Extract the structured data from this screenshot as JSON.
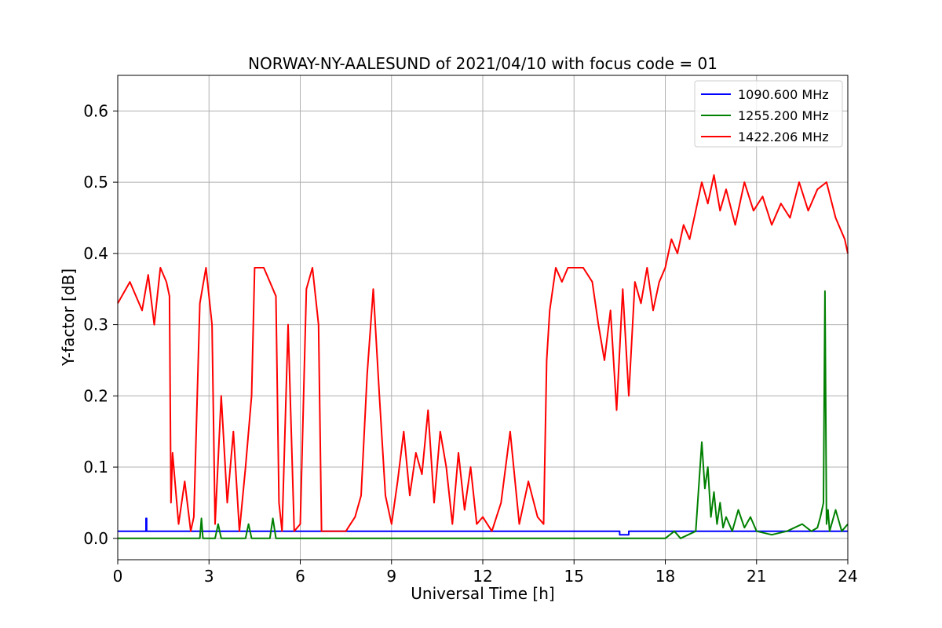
{
  "chart_data": {
    "type": "line",
    "title": "NORWAY-NY-AALESUND of 2021/04/10 with focus code = 01",
    "xlabel": "Universal Time [h]",
    "ylabel": "Y-factor [dB]",
    "xlim": [
      0,
      24
    ],
    "ylim": [
      -0.03,
      0.65
    ],
    "xticks": [
      0,
      3,
      6,
      9,
      12,
      15,
      18,
      21,
      24
    ],
    "yticks": [
      0.0,
      0.1,
      0.2,
      0.3,
      0.4,
      0.5,
      0.6
    ],
    "ytick_labels": [
      "0.0",
      "0.1",
      "0.2",
      "0.3",
      "0.4",
      "0.5",
      "0.6"
    ],
    "grid": true,
    "legend_position": "top-right",
    "series": [
      {
        "name": "1090.600 MHz",
        "color": "#0000ff",
        "x": [
          0,
          0.93,
          0.93,
          0.95,
          0.95,
          16.5,
          16.5,
          16.8,
          16.8,
          24
        ],
        "y": [
          0.01,
          0.01,
          0.028,
          0.028,
          0.01,
          0.01,
          0.005,
          0.005,
          0.01,
          0.01
        ]
      },
      {
        "name": "1255.200 MHz",
        "color": "#008000",
        "x": [
          0,
          2.7,
          2.75,
          2.8,
          3.2,
          3.3,
          3.4,
          4.2,
          4.3,
          4.4,
          5.0,
          5.1,
          5.2,
          18.0,
          18.3,
          18.5,
          19.0,
          19.2,
          19.3,
          19.4,
          19.5,
          19.6,
          19.7,
          19.8,
          19.9,
          20.0,
          20.2,
          20.4,
          20.6,
          20.8,
          21.0,
          21.5,
          22.0,
          22.5,
          22.8,
          23.0,
          23.1,
          23.2,
          23.25,
          23.3,
          23.35,
          23.4,
          23.6,
          23.8,
          24.0
        ],
        "y": [
          0,
          0,
          0.028,
          0,
          0,
          0.02,
          0,
          0,
          0.02,
          0,
          0,
          0.028,
          0,
          0,
          0.01,
          0,
          0.01,
          0.135,
          0.07,
          0.1,
          0.03,
          0.065,
          0.02,
          0.05,
          0.015,
          0.03,
          0.01,
          0.04,
          0.015,
          0.03,
          0.01,
          0.005,
          0.01,
          0.02,
          0.01,
          0.015,
          0.03,
          0.05,
          0.347,
          0.02,
          0.04,
          0.01,
          0.04,
          0.01,
          0.02
        ]
      },
      {
        "name": "1422.206 MHz",
        "color": "#ff0000",
        "x": [
          0,
          0.4,
          0.8,
          1.0,
          1.2,
          1.4,
          1.6,
          1.7,
          1.75,
          1.8,
          2.0,
          2.2,
          2.4,
          2.5,
          2.7,
          2.9,
          3.1,
          3.2,
          3.4,
          3.6,
          3.8,
          4.0,
          4.2,
          4.4,
          4.5,
          4.6,
          4.8,
          5.0,
          5.2,
          5.3,
          5.4,
          5.6,
          5.8,
          6.0,
          6.2,
          6.4,
          6.6,
          6.7,
          6.8,
          7.0,
          7.5,
          7.8,
          8.0,
          8.2,
          8.4,
          8.6,
          8.8,
          9.0,
          9.2,
          9.4,
          9.6,
          9.8,
          10.0,
          10.2,
          10.4,
          10.6,
          10.8,
          11.0,
          11.2,
          11.4,
          11.6,
          11.8,
          12.0,
          12.3,
          12.6,
          12.9,
          13.2,
          13.5,
          13.8,
          14.0,
          14.1,
          14.2,
          14.4,
          14.6,
          14.8,
          15.0,
          15.3,
          15.6,
          15.8,
          16.0,
          16.2,
          16.4,
          16.6,
          16.8,
          17.0,
          17.2,
          17.4,
          17.6,
          17.8,
          18.0,
          18.2,
          18.4,
          18.6,
          18.8,
          19.0,
          19.2,
          19.4,
          19.6,
          19.8,
          20.0,
          20.3,
          20.6,
          20.9,
          21.2,
          21.5,
          21.8,
          22.1,
          22.4,
          22.7,
          23.0,
          23.3,
          23.6,
          23.9,
          24.0
        ],
        "y": [
          0.33,
          0.36,
          0.32,
          0.37,
          0.3,
          0.38,
          0.36,
          0.34,
          0.05,
          0.12,
          0.02,
          0.08,
          0.01,
          0.03,
          0.33,
          0.38,
          0.3,
          0.02,
          0.2,
          0.05,
          0.15,
          0.01,
          0.1,
          0.2,
          0.38,
          0.38,
          0.38,
          0.36,
          0.34,
          0.05,
          0.01,
          0.3,
          0.01,
          0.02,
          0.35,
          0.38,
          0.3,
          0.01,
          0.01,
          0.01,
          0.01,
          0.03,
          0.06,
          0.23,
          0.35,
          0.2,
          0.06,
          0.02,
          0.08,
          0.15,
          0.06,
          0.12,
          0.09,
          0.18,
          0.05,
          0.15,
          0.1,
          0.02,
          0.12,
          0.04,
          0.1,
          0.02,
          0.03,
          0.01,
          0.05,
          0.15,
          0.02,
          0.08,
          0.03,
          0.02,
          0.25,
          0.32,
          0.38,
          0.36,
          0.38,
          0.38,
          0.38,
          0.36,
          0.3,
          0.25,
          0.32,
          0.18,
          0.35,
          0.2,
          0.36,
          0.33,
          0.38,
          0.32,
          0.36,
          0.38,
          0.42,
          0.4,
          0.44,
          0.42,
          0.46,
          0.5,
          0.47,
          0.51,
          0.46,
          0.49,
          0.44,
          0.5,
          0.46,
          0.48,
          0.44,
          0.47,
          0.45,
          0.5,
          0.46,
          0.49,
          0.5,
          0.45,
          0.42,
          0.4
        ]
      }
    ]
  }
}
